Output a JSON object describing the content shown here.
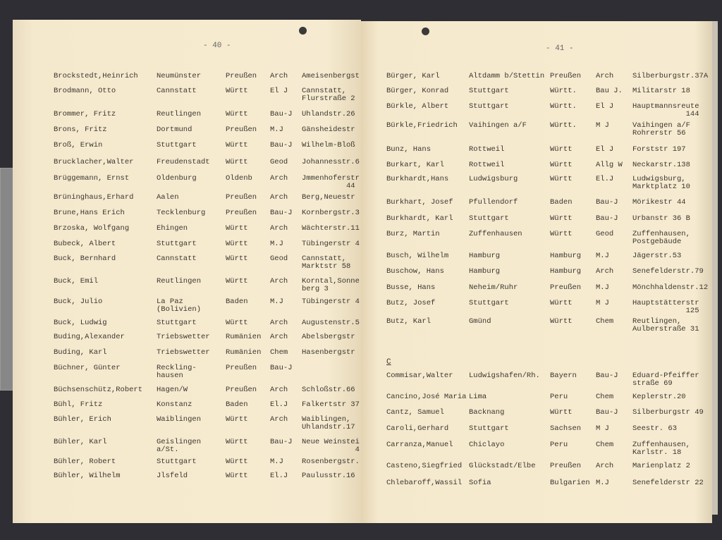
{
  "left_page": {
    "page_number": "- 40 -",
    "rows": [
      [
        "Brockstedt,Heinrich",
        "Neumünster",
        "Preußen",
        "Arch",
        "Ameisenbergst"
      ],
      [
        "Brodmann, Otto",
        "Cannstatt",
        "Württ",
        "El J",
        "Cannstatt,\nFlurstraße 2"
      ],
      [
        "Brommer, Fritz",
        "Reutlingen",
        "Württ",
        "Bau-J",
        "Uhlandstr.26"
      ],
      [
        "Brons, Fritz",
        "Dortmund",
        "Preußen",
        "M.J",
        "Gänsheidestr"
      ],
      [
        "Broß, Erwin",
        "Stuttgart",
        "Württ",
        "Bau-J",
        "Wilhelm-Bloß"
      ],
      [
        "Brucklacher,Walter",
        "Freudenstadt",
        "Württ",
        "Geod",
        "Johannesstr.6"
      ],
      [
        "Brüggemann, Ernst",
        "Oldenburg",
        "Oldenb",
        "Arch",
        "Jmmenhoferstr\n          44"
      ],
      [
        "Brüninghaus,Erhard",
        "Aalen",
        "Preußen",
        "Arch",
        "Berg,Neuestr"
      ],
      [
        "Brune,Hans Erich",
        "Tecklenburg",
        "Preußen",
        "Bau-J",
        "Kornbergstr.3"
      ],
      [
        "Brzoska, Wolfgang",
        "Ehingen",
        "Württ",
        "Arch",
        "Wächterstr.11"
      ],
      [
        "Bubeck, Albert",
        "Stuttgart",
        "Württ",
        "M.J",
        "Tübingerstr 4"
      ],
      [
        "Buck, Bernhard",
        "Cannstatt",
        "Württ",
        "Geod",
        "Cannstatt,\nMarktstr 58"
      ],
      [
        "Buck, Emil",
        "Reutlingen",
        "Württ",
        "Arch",
        "Korntal,Sonne\nberg 3"
      ],
      [
        "Buck, Julio",
        "La Paz\n(Bolivien)",
        "Baden",
        "M.J",
        "Tübingerstr 4"
      ],
      [
        "Buck, Ludwig",
        "Stuttgart",
        "Württ",
        "Arch",
        "Augustenstr.5"
      ],
      [
        "Buding,Alexander",
        "Triebswetter",
        "Rumänien",
        "Arch",
        "Abelsbergstr"
      ],
      [
        "Buding, Karl",
        "Triebswetter",
        "Rumänien",
        "Chem",
        "Hasenbergstr"
      ],
      [
        "Büchner, Günter",
        "Reckling-\nhausen",
        "Preußen",
        "Bau-J",
        ""
      ],
      [
        "Büchsenschütz,Robert",
        "Hagen/W",
        "Preußen",
        "Arch",
        "Schloßstr.66"
      ],
      [
        "Bühl, Fritz",
        "Konstanz",
        "Baden",
        "El.J",
        "Falkertstr 37"
      ],
      [
        "Bühler, Erich",
        "Waiblingen",
        "Württ",
        "Arch",
        "Waiblingen,\nUhlandstr.17"
      ],
      [
        "Bühler, Karl",
        "Geislingen\na/St.",
        "Württ",
        "Bau-J",
        "Neue Weinstei\n            4"
      ],
      [
        "Bühler, Robert",
        "Stuttgart",
        "Württ",
        "M.J",
        "Rosenbergstr."
      ],
      [
        "Bühler, Wilhelm",
        "Jlsfeld",
        "Württ",
        "El.J",
        "Paulusstr.16"
      ]
    ]
  },
  "right_page": {
    "page_number": "- 41 -",
    "section_letter": "C",
    "rows": [
      [
        "Bürger, Karl",
        "Altdamm b/Stettin",
        "Preußen",
        "Arch",
        "Silberburgstr.37A"
      ],
      [
        "Bürger, Konrad",
        "Stuttgart",
        "Württ.",
        "Bau J.",
        "Militarstr 18"
      ],
      [
        "Bürkle, Albert",
        "Stuttgart",
        "Württ.",
        "El J",
        "Hauptmannsreute\n            144"
      ],
      [
        "Bürkle,Friedrich",
        "Vaihingen a/F",
        "Württ.",
        "M J",
        "Vaihingen a/F\nRohrerstr 56"
      ],
      [
        "Bunz, Hans",
        "Rottweil",
        "Württ",
        "El J",
        "Forststr 197"
      ],
      [
        "Burkart, Karl",
        "Rottweil",
        "Württ",
        "Allg W",
        "Neckarstr.138"
      ],
      [
        "Burkhardt,Hans",
        "Ludwigsburg",
        "Württ",
        "El.J",
        "Ludwigsburg,\nMarktplatz 10"
      ],
      [
        "Burkhart, Josef",
        "Pfullendorf",
        "Baden",
        "Bau-J",
        "Mörikestr 44"
      ],
      [
        "Burkhardt, Karl",
        "Stuttgart",
        "Württ",
        "Bau-J",
        "Urbanstr 36 B"
      ],
      [
        "Burz, Martin",
        "Zuffenhausen",
        "Württ",
        "Geod",
        "Zuffenhausen,\nPostgebäude"
      ],
      [
        "Busch, Wilhelm",
        "Hamburg",
        "Hamburg",
        "M.J",
        "Jägerstr.53"
      ],
      [
        "Buschow, Hans",
        "Hamburg",
        "Hamburg",
        "Arch",
        "Senefelderstr.79"
      ],
      [
        "Busse, Hans",
        "Neheim/Ruhr",
        "Preußen",
        "M.J",
        "Mönchhaldenstr.12"
      ],
      [
        "Butz, Josef",
        "Stuttgart",
        "Württ",
        "M J",
        "Hauptstätterstr\n            125"
      ],
      [
        "Butz, Karl",
        "Gmünd",
        "Württ",
        "Chem",
        "Reutlingen,\nAulberstraße 31"
      ],
      [
        "Commisar,Walter",
        "Ludwigshafen/Rh.",
        "Bayern",
        "Bau-J",
        "Eduard-Pfeiffer\nstraße 69"
      ],
      [
        "Cancino,José Maria",
        "Lima",
        "Peru",
        "Chem",
        "Keplerstr.20"
      ],
      [
        "Cantz, Samuel",
        "Backnang",
        "Württ",
        "Bau-J",
        "Silberburgstr 49"
      ],
      [
        "Caroli,Gerhard",
        "Stuttgart",
        "Sachsen",
        "M J",
        "Seestr. 63"
      ],
      [
        "Carranza,Manuel",
        "Chiclayo",
        "Peru",
        "Chem",
        "Zuffenhausen,\nKarlstr. 18"
      ],
      [
        "Casteno,Siegfried",
        "Glückstadt/Elbe",
        "Preußen",
        "Arch",
        "Marienplatz 2"
      ],
      [
        "Chlebaroff,Wassil",
        "Sofia",
        "Bulgarien",
        "M.J",
        "Senefelderstr 22"
      ]
    ]
  }
}
